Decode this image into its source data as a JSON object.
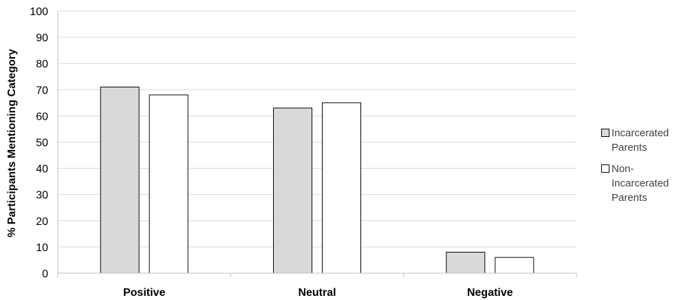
{
  "chart_data": {
    "type": "bar",
    "title": "",
    "xlabel": "",
    "ylabel": "% Participants Mentioning Category",
    "ylim": [
      0,
      100
    ],
    "yticks": [
      0,
      10,
      20,
      30,
      40,
      50,
      60,
      70,
      80,
      90,
      100
    ],
    "categories": [
      "Positive",
      "Neutral",
      "Negative"
    ],
    "series": [
      {
        "name": "Incarcerated Parents",
        "values": [
          71,
          63,
          8
        ],
        "color": "#d9d9d9"
      },
      {
        "name": "Non-Incarcerated Parents",
        "values": [
          68,
          65,
          6
        ],
        "color": "#ffffff"
      }
    ],
    "grid": true,
    "legend_position": "right"
  },
  "legend": {
    "items": [
      {
        "label": "Incarcerated\nParents",
        "color": "#d9d9d9"
      },
      {
        "label": "Non-\nIncarcerated\nParents",
        "color": "#ffffff"
      }
    ]
  }
}
